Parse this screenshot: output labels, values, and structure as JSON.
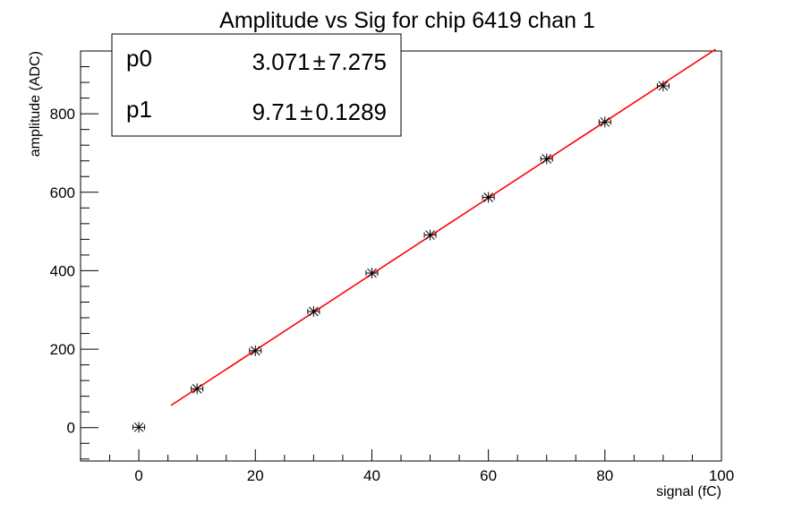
{
  "chart_data": {
    "type": "scatter",
    "title": "Amplitude vs Sig for chip 6419 chan 1",
    "xlabel": "signal (fC)",
    "ylabel": "amplitude (ADC)",
    "xlim": [
      -10,
      100
    ],
    "ylim": [
      -85,
      960
    ],
    "x_ticks": [
      0,
      20,
      40,
      60,
      80,
      100
    ],
    "y_ticks": [
      0,
      200,
      400,
      600,
      800
    ],
    "x_tick_labels": [
      "0",
      "20",
      "40",
      "60",
      "80",
      "100"
    ],
    "y_tick_labels": [
      "0",
      "200",
      "400",
      "600",
      "800"
    ],
    "grid": false,
    "series": [
      {
        "x": [
          0,
          10,
          20,
          30,
          40,
          50,
          60,
          70,
          80,
          90
        ],
        "y": [
          1,
          99,
          196,
          296,
          394,
          491,
          587,
          685,
          779,
          871
        ],
        "x_err": 1,
        "y_err": 5,
        "marker": "asterisk",
        "color": "#000000"
      }
    ],
    "fit": {
      "type": "linear",
      "color": "#ff0000",
      "x_range": [
        5.5,
        99
      ],
      "p0": 3.071,
      "p1": 9.71
    },
    "stats_box": {
      "rows": [
        {
          "name": "p0",
          "value": "3.071",
          "error": "7.275"
        },
        {
          "name": "p1",
          "value": "9.71",
          "error": "0.1289"
        }
      ],
      "pm": "±",
      "placement": "top-left"
    }
  }
}
